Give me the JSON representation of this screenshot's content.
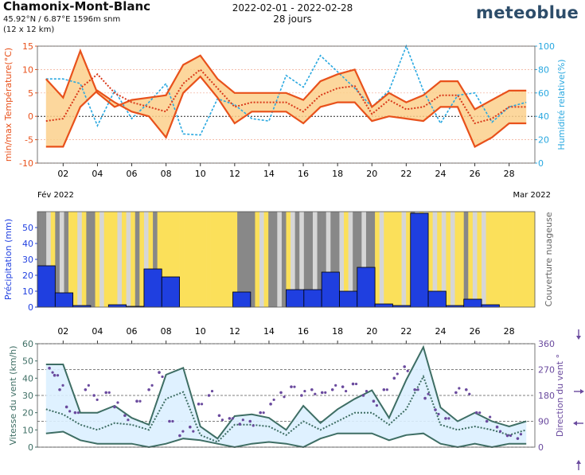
{
  "header": {
    "title": "Chamonix-Mont-Blanc",
    "coords": "45.92°N / 6.87°E   1596m snm",
    "cell": "(12 x 12 km)",
    "period": "2022-02-01 - 2022-02-28",
    "days": "28 jours",
    "brand": "meteoblue"
  },
  "colors": {
    "temp_line": "#e8511b",
    "temp_fill": "#fbd08c",
    "humidity": "#29a8e0",
    "precip": "#1f3fe0",
    "cloud_overcast": "#888888",
    "cloud_partly": "#d6d6d6",
    "cloud_sunny": "#fbe05a",
    "wind_line": "#3e6e64",
    "wind_fill": "#dcefff",
    "wind_dir": "#6a4a9e"
  },
  "axis": {
    "day_ticks": [
      "02",
      "04",
      "06",
      "08",
      "10",
      "12",
      "14",
      "16",
      "18",
      "20",
      "22",
      "24",
      "26",
      "28"
    ],
    "month_start": "Fév 2022",
    "month_end": "Mar 2022"
  },
  "chart_data": [
    {
      "type": "line",
      "title": "",
      "ylabel": "min/max Température(°C)",
      "y2label": "Humidité relative(%)",
      "ylim": [
        -10,
        15
      ],
      "y2lim": [
        0,
        100
      ],
      "yticks": [
        -10,
        -5,
        0,
        5,
        10,
        15
      ],
      "y2ticks": [
        0,
        20,
        40,
        60,
        80,
        100
      ],
      "x": [
        1,
        2,
        3,
        4,
        5,
        6,
        7,
        8,
        9,
        10,
        11,
        12,
        13,
        14,
        15,
        16,
        17,
        18,
        19,
        20,
        21,
        22,
        23,
        24,
        25,
        26,
        27,
        28,
        29
      ],
      "series": [
        {
          "role": "max",
          "values": [
            8,
            4,
            14,
            5,
            2,
            3.5,
            4,
            4.5,
            11,
            13,
            8,
            5,
            5,
            5,
            5,
            3.5,
            7.5,
            9,
            10,
            2,
            5,
            3,
            4.5,
            7.5,
            7.5,
            1.5,
            3.5,
            5.5,
            5.5
          ]
        },
        {
          "role": "min",
          "values": [
            -6.5,
            -6.5,
            2,
            5.5,
            3,
            1,
            0,
            -4.5,
            5,
            8.5,
            4,
            -1.5,
            1,
            1,
            1,
            -1.5,
            2,
            3,
            3,
            -1,
            0,
            -0.5,
            -1,
            2,
            2,
            -6.5,
            -4.5,
            -1.5,
            -1.5
          ]
        },
        {
          "role": "mean",
          "values": [
            -1,
            -0.5,
            6,
            9,
            5,
            3,
            2,
            1,
            7,
            10,
            6,
            2,
            3,
            3,
            3,
            1,
            4.5,
            6,
            6.5,
            0.5,
            3.5,
            1.5,
            2,
            4.5,
            4.5,
            -1.5,
            -0.5,
            2,
            2
          ]
        },
        {
          "role": "humidity",
          "axis": "right",
          "values": [
            72,
            72,
            68,
            32,
            62,
            38,
            52,
            68,
            25,
            24,
            55,
            50,
            38,
            36,
            75,
            65,
            92,
            78,
            64,
            48,
            62,
            100,
            62,
            34,
            58,
            60,
            35,
            48,
            52
          ]
        }
      ]
    },
    {
      "type": "bar",
      "title": "",
      "ylabel": "Précipitation (mm)",
      "y2label": "Couverture nuageuse",
      "ylim": [
        0,
        60
      ],
      "yticks": [
        0,
        10,
        20,
        30,
        40,
        50
      ],
      "categories": [
        1,
        2,
        3,
        4,
        5,
        6,
        7,
        8,
        9,
        10,
        11,
        12,
        13,
        14,
        15,
        16,
        17,
        18,
        19,
        20,
        21,
        22,
        23,
        24,
        25,
        26,
        27,
        28
      ],
      "values": [
        26,
        9,
        1,
        0,
        1.5,
        0.5,
        24,
        19,
        0,
        0,
        0,
        9.5,
        0,
        0,
        11,
        11,
        22,
        10,
        25,
        2,
        1,
        59,
        10,
        1,
        5,
        1.5,
        0,
        0
      ],
      "cloud_cover": [
        {
          "day": 1,
          "levels": [
            "o",
            "o",
            "p",
            "s"
          ]
        },
        {
          "day": 2,
          "levels": [
            "o",
            "p",
            "o",
            "s"
          ]
        },
        {
          "day": 3,
          "levels": [
            "s",
            "p",
            "s",
            "o"
          ]
        },
        {
          "day": 4,
          "levels": [
            "o",
            "s",
            "p",
            "s"
          ]
        },
        {
          "day": 5,
          "levels": [
            "s",
            "s",
            "p",
            "s"
          ]
        },
        {
          "day": 6,
          "levels": [
            "p",
            "s",
            "o",
            "s"
          ]
        },
        {
          "day": 7,
          "levels": [
            "p",
            "s",
            "o",
            "s"
          ]
        },
        {
          "day": 8,
          "levels": [
            "s",
            "s",
            "s",
            "s"
          ]
        },
        {
          "day": 9,
          "levels": [
            "s",
            "s",
            "s",
            "s"
          ]
        },
        {
          "day": 10,
          "levels": [
            "s",
            "s",
            "s",
            "s"
          ]
        },
        {
          "day": 11,
          "levels": [
            "s",
            "s",
            "s",
            "s"
          ]
        },
        {
          "day": 12,
          "levels": [
            "s",
            "o",
            "o",
            "o"
          ]
        },
        {
          "day": 13,
          "levels": [
            "o",
            "s",
            "p",
            "s"
          ]
        },
        {
          "day": 14,
          "levels": [
            "o",
            "o",
            "p",
            "o"
          ]
        },
        {
          "day": 15,
          "levels": [
            "s",
            "p",
            "o",
            "p"
          ]
        },
        {
          "day": 16,
          "levels": [
            "o",
            "o",
            "p",
            "o"
          ]
        },
        {
          "day": 17,
          "levels": [
            "o",
            "p",
            "o",
            "o"
          ]
        },
        {
          "day": 18,
          "levels": [
            "p",
            "s",
            "p",
            "o"
          ]
        },
        {
          "day": 19,
          "levels": [
            "o",
            "p",
            "o",
            "o"
          ]
        },
        {
          "day": 20,
          "levels": [
            "s",
            "p",
            "s",
            "s"
          ]
        },
        {
          "day": 21,
          "levels": [
            "s",
            "s",
            "p",
            "s"
          ]
        },
        {
          "day": 22,
          "levels": [
            "o",
            "p",
            "s",
            "p"
          ]
        },
        {
          "day": 23,
          "levels": [
            "s",
            "p",
            "s",
            "p"
          ]
        },
        {
          "day": 24,
          "levels": [
            "s",
            "p",
            "s",
            "s"
          ]
        },
        {
          "day": 25,
          "levels": [
            "o",
            "s",
            "p",
            "s"
          ]
        },
        {
          "day": 26,
          "levels": [
            "p",
            "s",
            "s",
            "s"
          ]
        },
        {
          "day": 27,
          "levels": [
            "s",
            "s",
            "s",
            "s"
          ]
        },
        {
          "day": 28,
          "levels": [
            "s",
            "s",
            "s",
            "s"
          ]
        }
      ]
    },
    {
      "type": "line",
      "title": "",
      "ylabel": "Vitesse du vent (km/h)",
      "y2label": "Direction du vent °",
      "ylim": [
        0,
        60
      ],
      "y2lim": [
        0,
        360
      ],
      "yticks": [
        0,
        10,
        20,
        30,
        40,
        50,
        60
      ],
      "y2ticks": [
        0,
        90,
        180,
        270,
        360
      ],
      "x": [
        1,
        2,
        3,
        4,
        5,
        6,
        7,
        8,
        9,
        10,
        11,
        12,
        13,
        14,
        15,
        16,
        17,
        18,
        19,
        20,
        21,
        22,
        23,
        24,
        25,
        26,
        27,
        28,
        29
      ],
      "series": [
        {
          "role": "gust_max",
          "values": [
            48,
            48,
            20,
            20,
            24,
            17,
            13,
            42,
            46,
            12,
            5,
            18,
            19,
            17,
            10,
            24,
            14,
            22,
            28,
            33,
            17,
            39,
            58,
            23,
            15,
            20,
            15,
            12,
            15
          ]
        },
        {
          "role": "mean_dotted",
          "values": [
            22,
            19,
            13,
            10,
            14,
            13,
            10,
            28,
            32,
            7,
            3,
            13,
            13,
            12,
            7,
            15,
            10,
            15,
            20,
            20,
            13,
            22,
            41,
            13,
            10,
            12,
            10,
            7,
            10
          ]
        },
        {
          "role": "min",
          "values": [
            8,
            9,
            4,
            2,
            2,
            2,
            0,
            2,
            5,
            4,
            2,
            0,
            2,
            3,
            2,
            0,
            5,
            8,
            8,
            8,
            4,
            7,
            8,
            2,
            0,
            2,
            0,
            2,
            2
          ]
        }
      ],
      "direction": [
        {
          "day": 1.2,
          "deg": 275
        },
        {
          "day": 1.5,
          "deg": 250
        },
        {
          "day": 1.8,
          "deg": 200
        },
        {
          "day": 2.2,
          "deg": 140
        },
        {
          "day": 2.7,
          "deg": 120
        },
        {
          "day": 3.3,
          "deg": 200
        },
        {
          "day": 3.8,
          "deg": 180
        },
        {
          "day": 4.5,
          "deg": 190
        },
        {
          "day": 5.0,
          "deg": 140
        },
        {
          "day": 5.6,
          "deg": 110
        },
        {
          "day": 6.3,
          "deg": 160
        },
        {
          "day": 7.0,
          "deg": 200
        },
        {
          "day": 7.6,
          "deg": 260
        },
        {
          "day": 8.2,
          "deg": 90
        },
        {
          "day": 8.8,
          "deg": 40
        },
        {
          "day": 9.4,
          "deg": 70
        },
        {
          "day": 9.9,
          "deg": 150
        },
        {
          "day": 10.5,
          "deg": 180
        },
        {
          "day": 11.1,
          "deg": 110
        },
        {
          "day": 11.7,
          "deg": 100
        },
        {
          "day": 12.3,
          "deg": 80
        },
        {
          "day": 12.9,
          "deg": 90
        },
        {
          "day": 13.5,
          "deg": 120
        },
        {
          "day": 14.1,
          "deg": 150
        },
        {
          "day": 14.7,
          "deg": 190
        },
        {
          "day": 15.3,
          "deg": 210
        },
        {
          "day": 15.9,
          "deg": 180
        },
        {
          "day": 16.5,
          "deg": 200
        },
        {
          "day": 17.1,
          "deg": 190
        },
        {
          "day": 17.7,
          "deg": 200
        },
        {
          "day": 18.3,
          "deg": 210
        },
        {
          "day": 18.9,
          "deg": 220
        },
        {
          "day": 19.5,
          "deg": 180
        },
        {
          "day": 20.1,
          "deg": 160
        },
        {
          "day": 20.7,
          "deg": 200
        },
        {
          "day": 21.3,
          "deg": 240
        },
        {
          "day": 21.9,
          "deg": 280
        },
        {
          "day": 22.5,
          "deg": 200
        },
        {
          "day": 23.1,
          "deg": 170
        },
        {
          "day": 23.7,
          "deg": 130
        },
        {
          "day": 24.3,
          "deg": 100
        },
        {
          "day": 24.9,
          "deg": 190
        },
        {
          "day": 25.5,
          "deg": 200
        },
        {
          "day": 26.1,
          "deg": 120
        },
        {
          "day": 26.7,
          "deg": 90
        },
        {
          "day": 27.3,
          "deg": 70
        },
        {
          "day": 27.9,
          "deg": 40
        },
        {
          "day": 28.5,
          "deg": 30
        }
      ]
    }
  ]
}
